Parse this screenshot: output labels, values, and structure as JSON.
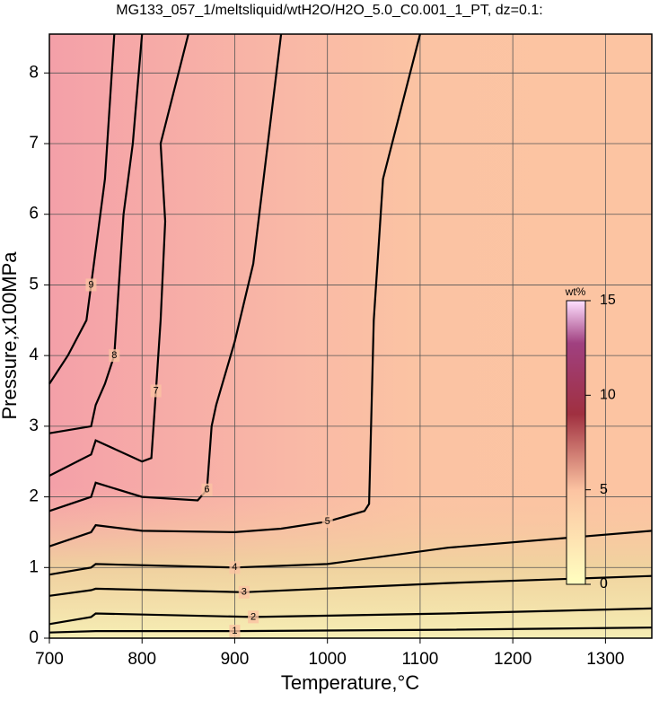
{
  "chart_data": {
    "type": "contour",
    "title": "MG133_057_1/meltsliquid/wtH2O/H2O_5.0_C0.001_1_PT, dz=0.1:",
    "x_label": "Temperature,°C",
    "y_label": "Pressure,x100MPa",
    "xlim": [
      700,
      1350
    ],
    "xticks": [
      700,
      800,
      900,
      1000,
      1100,
      1200,
      1300
    ],
    "ylim": [
      0,
      8.55
    ],
    "yticks": [
      0,
      1,
      2,
      3,
      4,
      5,
      6,
      7,
      8
    ],
    "grid": true,
    "line_color": "#000000",
    "series": [
      {
        "level": 1,
        "x": [
          700,
          750,
          900,
          1130,
          1350
        ],
        "values": [
          0.08,
          0.1,
          0.1,
          0.12,
          0.15
        ]
      },
      {
        "level": 2,
        "x": [
          700,
          745,
          750,
          920,
          1130,
          1350
        ],
        "values": [
          0.2,
          0.3,
          0.35,
          0.3,
          0.35,
          0.42
        ]
      },
      {
        "level": 3,
        "x": [
          700,
          745,
          750,
          910,
          1130,
          1350
        ],
        "values": [
          0.6,
          0.68,
          0.7,
          0.65,
          0.78,
          0.88
        ]
      },
      {
        "level": 4,
        "x": [
          700,
          745,
          750,
          900,
          1000,
          1130,
          1350
        ],
        "values": [
          0.9,
          1.0,
          1.05,
          1.0,
          1.05,
          1.28,
          1.52
        ]
      },
      {
        "level": 5,
        "x": [
          700,
          745,
          750,
          800,
          900,
          950,
          1000,
          1040,
          1045,
          1050,
          1060,
          1100
        ],
        "values": [
          1.3,
          1.5,
          1.6,
          1.52,
          1.5,
          1.55,
          1.65,
          1.8,
          1.9,
          4.5,
          6.5,
          8.55
        ]
      },
      {
        "level": 6,
        "x": [
          700,
          745,
          750,
          800,
          860,
          870,
          875,
          880,
          900,
          920,
          950
        ],
        "values": [
          1.8,
          2.0,
          2.2,
          2.0,
          1.95,
          2.1,
          3.0,
          3.3,
          4.2,
          5.3,
          8.55
        ]
      },
      {
        "level": 7,
        "x": [
          700,
          745,
          750,
          800,
          810,
          815,
          820,
          825,
          820,
          850
        ],
        "values": [
          2.3,
          2.6,
          2.8,
          2.5,
          2.55,
          3.5,
          4.5,
          5.9,
          7.0,
          8.55
        ]
      },
      {
        "level": 8,
        "x": [
          700,
          745,
          750,
          760,
          770,
          775,
          780,
          790,
          800
        ],
        "values": [
          2.9,
          3.0,
          3.3,
          3.6,
          4.0,
          5.0,
          6.0,
          7.0,
          8.55
        ]
      },
      {
        "level": 9,
        "x": [
          700,
          720,
          740,
          745,
          760,
          770
        ],
        "values": [
          3.6,
          4.0,
          4.5,
          5.0,
          6.5,
          8.55
        ]
      }
    ],
    "colorbar": {
      "label": "wt%",
      "lim": [
        0,
        15
      ],
      "ticks": [
        0,
        5,
        10,
        15
      ]
    }
  }
}
